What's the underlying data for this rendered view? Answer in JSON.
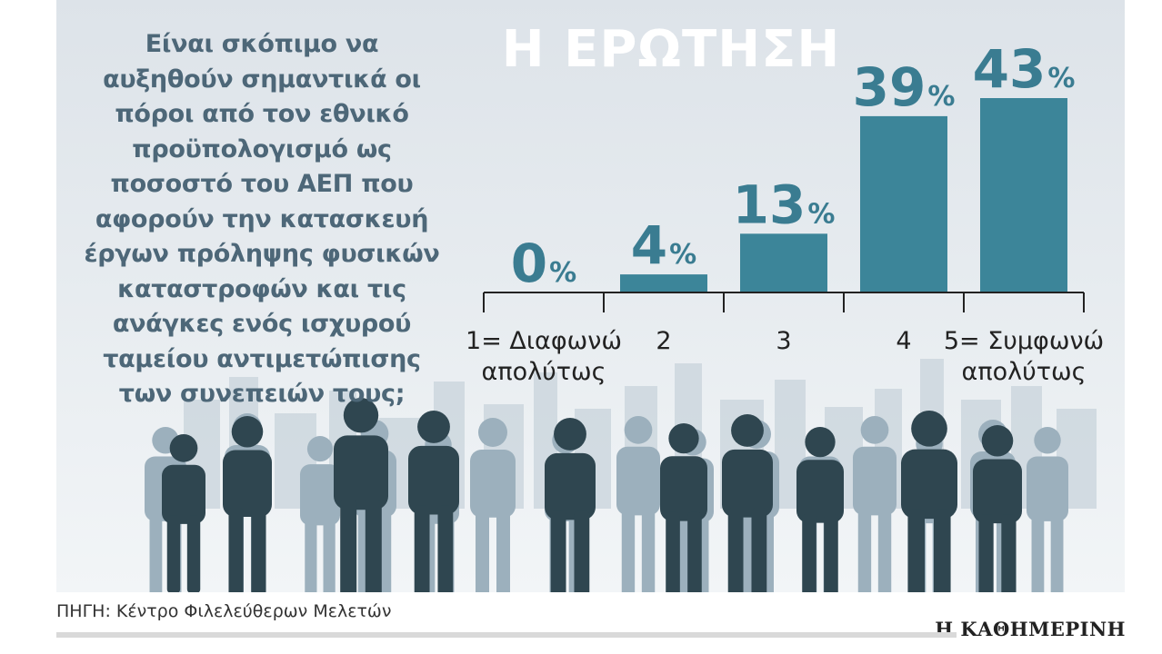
{
  "question": "Είναι σκόπιμο να αυξηθούν σημαντικά οι πόροι από τον εθνικό προϋπολογισμό ως ποσοστό του ΑΕΠ που αφορούν την κατασκευή έργων πρόληψης φυσικών καταστροφών και τις ανάγκες ενός ισχυρού ταμείου αντιμετώπισης των συνεπειών τους;",
  "heading": "Η ΕΡΩΤΗΣΗ",
  "source": "ΠΗΓΗ: Κέντρο Φιλελεύθερων Μελετών",
  "brand": "Η ΚΑΘΗΜΕΡΙΝΗ",
  "colors": {
    "bar": "#3c8599",
    "value_text": "#3a7c91",
    "question_text": "#4d6778",
    "axis": "#222222"
  },
  "chart_data": {
    "type": "bar",
    "title": "Η ΕΡΩΤΗΣΗ",
    "categories": [
      [
        "1= Διαφωνώ",
        "απολύτως"
      ],
      [
        "2"
      ],
      [
        "3"
      ],
      [
        "4"
      ],
      [
        "5= Συμφωνώ",
        "απολύτως"
      ]
    ],
    "values": [
      0,
      4,
      13,
      39,
      43
    ],
    "unit": "%",
    "ylim": [
      0,
      43
    ],
    "grid": false,
    "legend": "none"
  }
}
